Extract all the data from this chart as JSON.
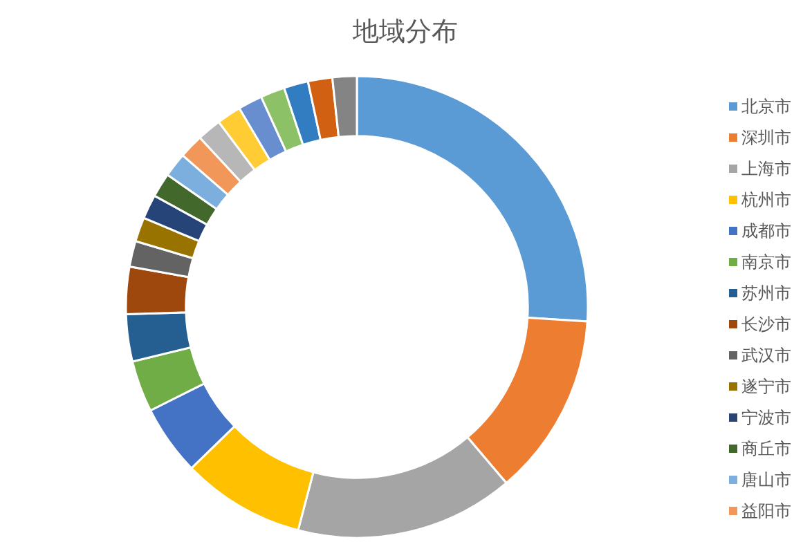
{
  "chart_data": {
    "type": "donut",
    "title": "地域分布",
    "categories": [
      "北京市",
      "深圳市",
      "上海市",
      "杭州市",
      "成都市",
      "南京市",
      "苏州市",
      "长沙市",
      "武汉市",
      "遂宁市",
      "宁波市",
      "商丘市",
      "唐山市",
      "益阳市",
      null,
      null,
      null,
      null,
      null,
      null,
      null
    ],
    "values": [
      26,
      12.8,
      15.3,
      8.6,
      4.9,
      3.6,
      3.3,
      3.3,
      1.8,
      1.7,
      1.7,
      1.7,
      1.7,
      1.7,
      1.7,
      1.7,
      1.7,
      1.7,
      1.7,
      1.7,
      1.7
    ],
    "colors": [
      "#5b9bd5",
      "#ed7d31",
      "#a5a5a5",
      "#ffc000",
      "#4472c4",
      "#70ad47",
      "#255e91",
      "#9e480e",
      "#636363",
      "#997300",
      "#264478",
      "#43682b",
      "#7cafdd",
      "#f1975a",
      "#b7b7b7",
      "#ffcd33",
      "#698ed0",
      "#8cc168",
      "#327dc2",
      "#d26012",
      "#848484"
    ],
    "legend": "right"
  }
}
